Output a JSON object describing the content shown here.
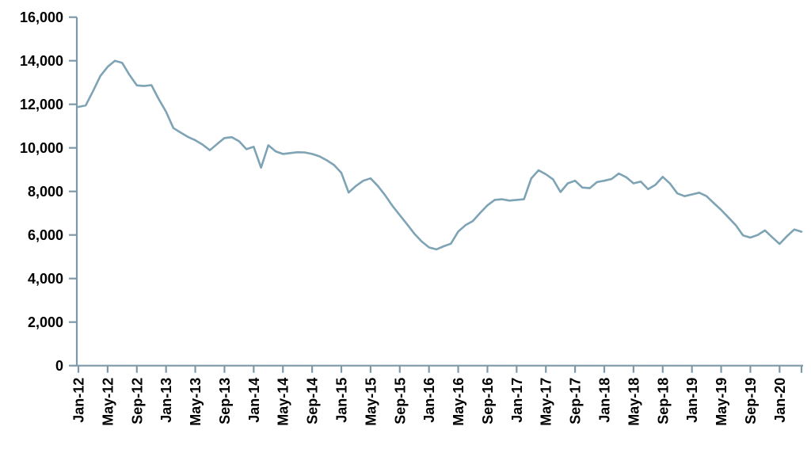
{
  "chart_data": {
    "type": "line",
    "title": "",
    "xlabel": "",
    "ylabel": "",
    "grid": false,
    "legend": "none",
    "ylim": [
      0,
      16000
    ],
    "y_ticks": [
      0,
      2000,
      4000,
      6000,
      8000,
      10000,
      12000,
      14000,
      16000
    ],
    "y_tick_labels": [
      "0",
      "2,000",
      "4,000",
      "6,000",
      "8,000",
      "10,000",
      "12,000",
      "14,000",
      "16,000"
    ],
    "x_tick_every": 4,
    "x_tick_labels": [
      "Jan-12",
      "May-12",
      "Sep-12",
      "Jan-13",
      "May-13",
      "Sep-13",
      "Jan-14",
      "May-14",
      "Sep-14",
      "Jan-15",
      "May-15",
      "Sep-15",
      "Jan-16",
      "May-16",
      "Sep-16",
      "Jan-17",
      "May-17",
      "Sep-17",
      "Jan-18",
      "May-18",
      "Sep-18",
      "Jan-19",
      "May-19",
      "Sep-19",
      "Jan-20"
    ],
    "x": [
      "Jan-12",
      "Feb-12",
      "Mar-12",
      "Apr-12",
      "May-12",
      "Jun-12",
      "Jul-12",
      "Aug-12",
      "Sep-12",
      "Oct-12",
      "Nov-12",
      "Dec-12",
      "Jan-13",
      "Feb-13",
      "Mar-13",
      "Apr-13",
      "May-13",
      "Jun-13",
      "Jul-13",
      "Aug-13",
      "Sep-13",
      "Oct-13",
      "Nov-13",
      "Dec-13",
      "Jan-14",
      "Feb-14",
      "Mar-14",
      "Apr-14",
      "May-14",
      "Jun-14",
      "Jul-14",
      "Aug-14",
      "Sep-14",
      "Oct-14",
      "Nov-14",
      "Dec-14",
      "Jan-15",
      "Feb-15",
      "Mar-15",
      "Apr-15",
      "May-15",
      "Jun-15",
      "Jul-15",
      "Aug-15",
      "Sep-15",
      "Oct-15",
      "Nov-15",
      "Dec-15",
      "Jan-16",
      "Feb-16",
      "Mar-16",
      "Apr-16",
      "May-16",
      "Jun-16",
      "Jul-16",
      "Aug-16",
      "Sep-16",
      "Oct-16",
      "Nov-16",
      "Dec-16",
      "Jan-17",
      "Feb-17",
      "Mar-17",
      "Apr-17",
      "May-17",
      "Jun-17",
      "Jul-17",
      "Aug-17",
      "Sep-17",
      "Oct-17",
      "Nov-17",
      "Dec-17",
      "Jan-18",
      "Feb-18",
      "Mar-18",
      "Apr-18",
      "May-18",
      "Jun-18",
      "Jul-18",
      "Aug-18",
      "Sep-18",
      "Oct-18",
      "Nov-18",
      "Dec-18",
      "Jan-19",
      "Feb-19",
      "Mar-19",
      "Apr-19",
      "May-19",
      "Jun-19",
      "Jul-19",
      "Aug-19",
      "Sep-19",
      "Oct-19",
      "Nov-19",
      "Dec-19",
      "Jan-20",
      "Feb-20",
      "Mar-20",
      "Apr-20"
    ],
    "series": [
      {
        "name": "series-1",
        "values": [
          11880,
          11950,
          12600,
          13300,
          13720,
          14000,
          13900,
          13340,
          12870,
          12840,
          12880,
          12240,
          11660,
          10910,
          10700,
          10500,
          10350,
          10150,
          9890,
          10180,
          10450,
          10490,
          10300,
          9940,
          10050,
          9090,
          10120,
          9840,
          9720,
          9760,
          9800,
          9790,
          9720,
          9610,
          9430,
          9210,
          8850,
          7950,
          8250,
          8490,
          8600,
          8250,
          7820,
          7330,
          6910,
          6490,
          6060,
          5700,
          5430,
          5340,
          5480,
          5600,
          6160,
          6450,
          6640,
          7010,
          7360,
          7610,
          7640,
          7580,
          7610,
          7640,
          8600,
          8970,
          8790,
          8550,
          7970,
          8370,
          8490,
          8180,
          8150,
          8430,
          8490,
          8570,
          8820,
          8650,
          8370,
          8450,
          8100,
          8300,
          8670,
          8360,
          7910,
          7780,
          7860,
          7940,
          7780,
          7460,
          7150,
          6800,
          6450,
          5980,
          5880,
          6000,
          6210,
          5890,
          5590,
          5940,
          6250,
          6150
        ]
      }
    ],
    "colors": {
      "line": "#7EA3B5",
      "axis": "#7D99A9",
      "tick": "#7D99A9",
      "label": "#000000",
      "background": "#FFFFFF"
    }
  }
}
